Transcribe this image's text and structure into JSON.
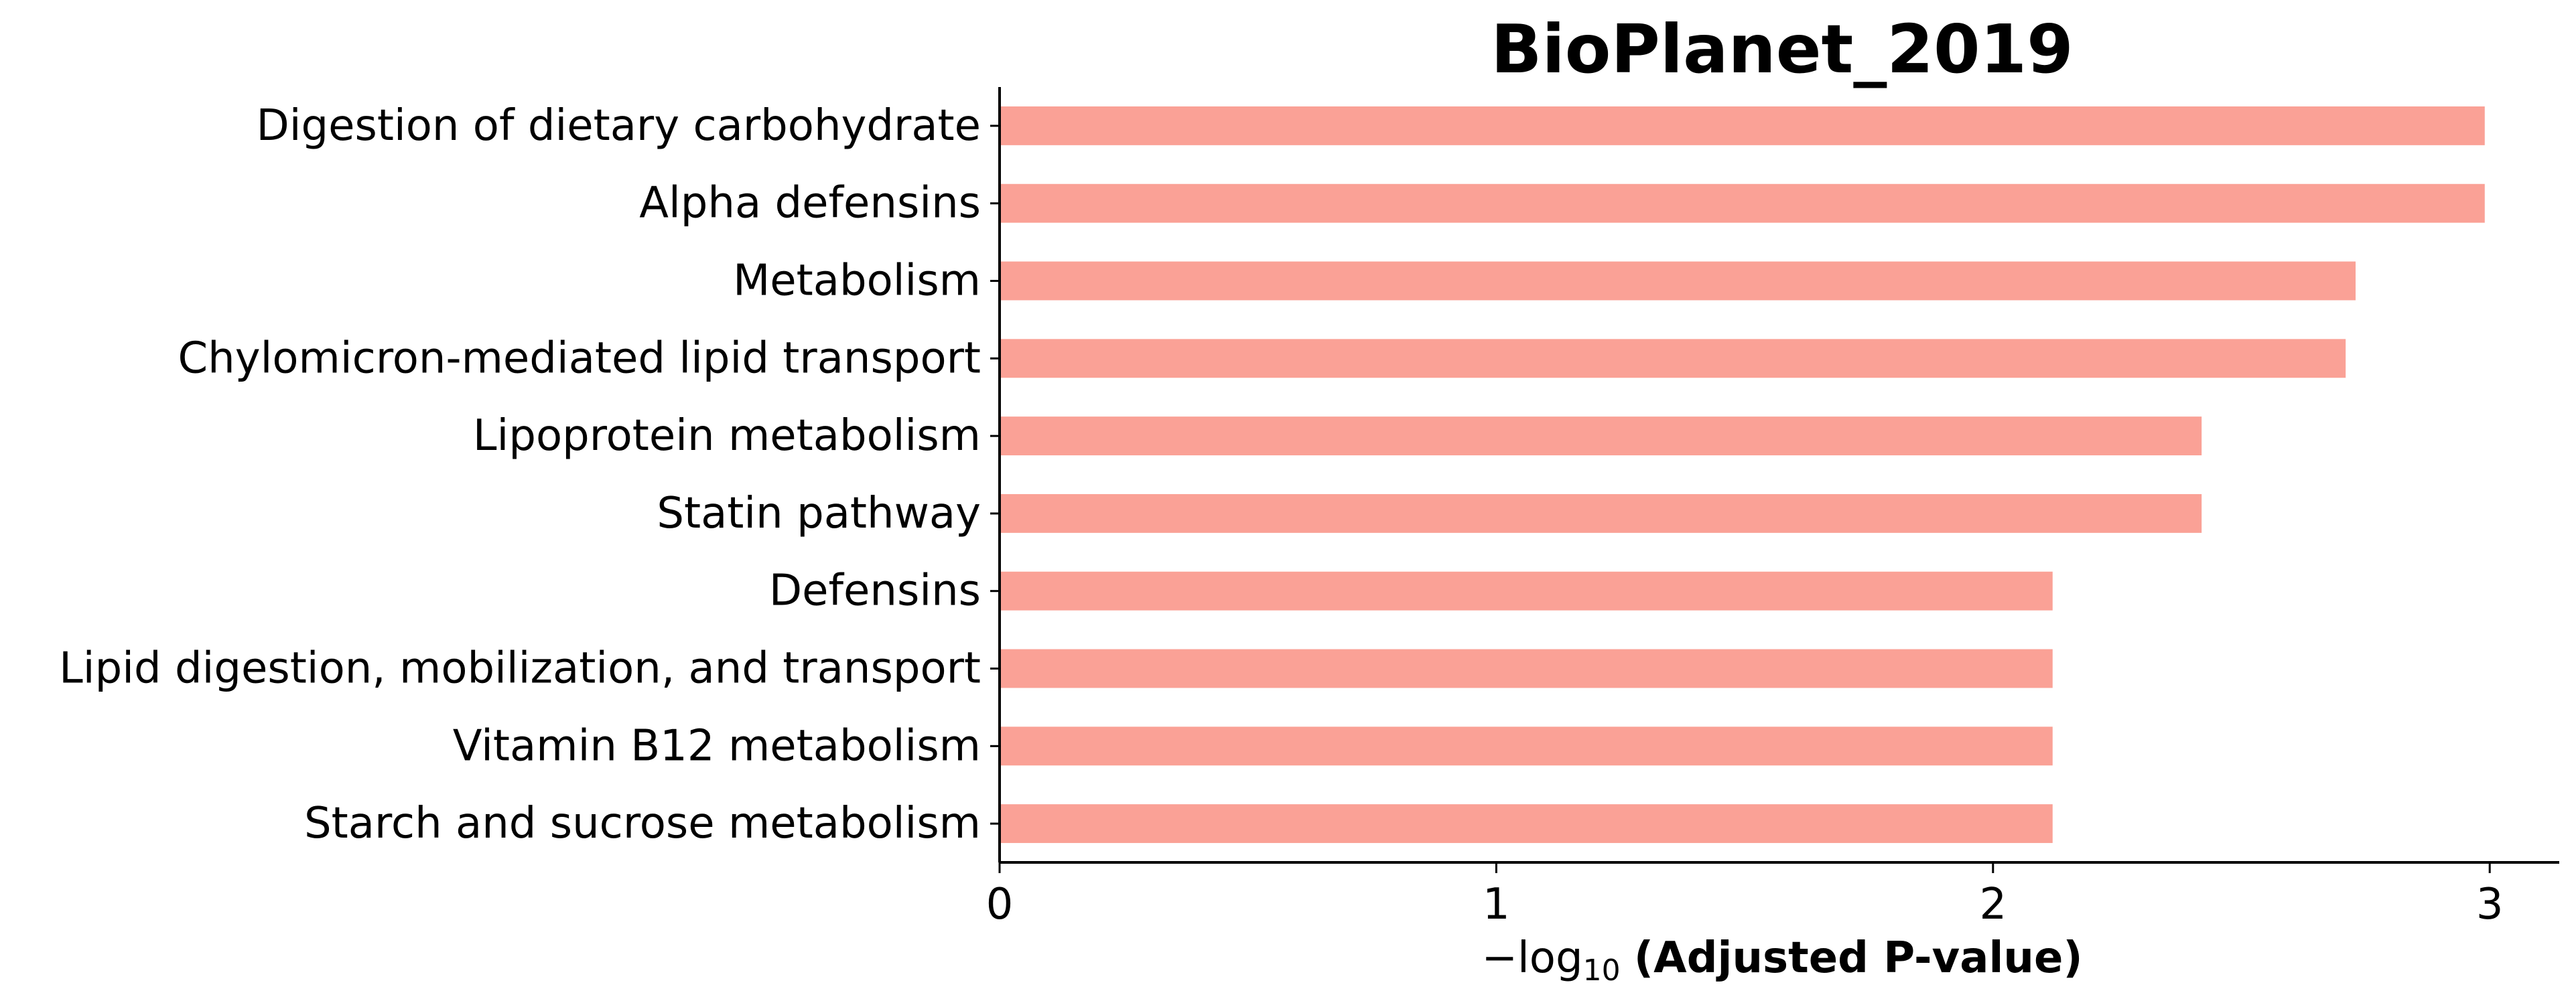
{
  "chart_data": {
    "type": "bar",
    "orientation": "horizontal",
    "title": "BioPlanet_2019",
    "xlabel": {
      "prefix": "−log",
      "subscript": "10",
      "main": "(Adjusted P-value)"
    },
    "ylabel": "",
    "categories": [
      "Digestion of dietary carbohydrate",
      "Alpha defensins",
      "Metabolism",
      "Chylomicron-mediated lipid transport",
      "Lipoprotein metabolism",
      "Statin pathway",
      "Defensins",
      "Lipid digestion, mobilization, and transport",
      "Vitamin B12 metabolism",
      "Starch and sucrose metabolism"
    ],
    "values": [
      2.99,
      2.99,
      2.73,
      2.71,
      2.42,
      2.42,
      2.12,
      2.12,
      2.12,
      2.12
    ],
    "xlim": [
      0,
      3.14
    ],
    "xticks": [
      0,
      1,
      2,
      3
    ],
    "bar_color": "#FAA196",
    "grid": false,
    "legend": "none"
  }
}
